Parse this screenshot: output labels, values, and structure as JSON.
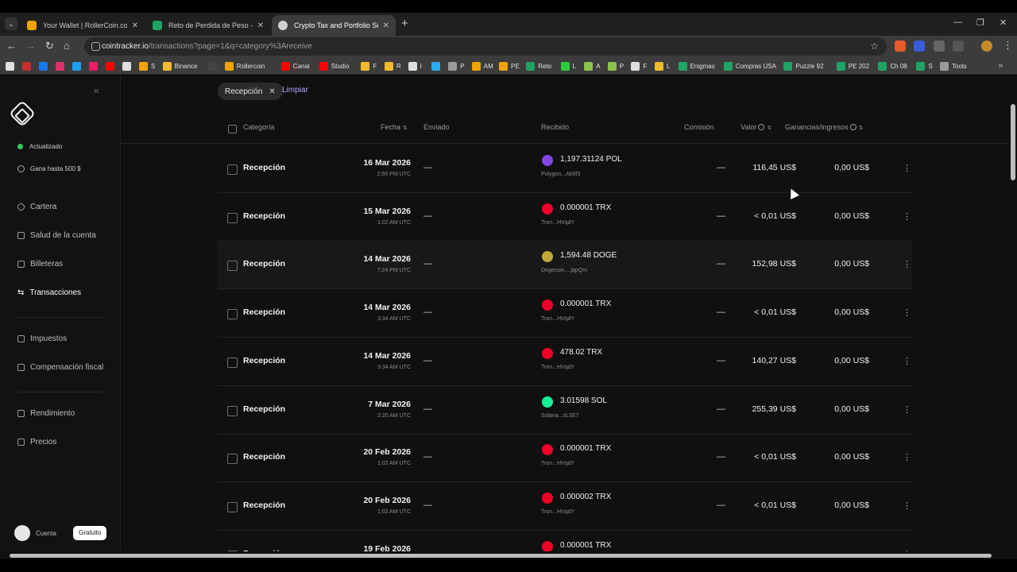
{
  "browser": {
    "tabs": [
      {
        "title": "Your Wallet | RollerCoin.com | W",
        "favicon": "rollercoin-icon",
        "color": "#f0a400",
        "active": false
      },
      {
        "title": "Reto de Perdida de Peso - El M",
        "favicon": "sheets-icon",
        "color": "#1fa463",
        "active": false
      },
      {
        "title": "Crypto Tax and Portfolio Softw",
        "favicon": "cointracker-icon",
        "color": "#d0d0d0",
        "active": true
      }
    ],
    "url_host": "cointracker.io",
    "url_path": "/transactions?page=1&q=category%3Areceive",
    "bookmarks": [
      {
        "label": "",
        "color": "#e0e0e0"
      },
      {
        "label": "",
        "color": "#c4302b"
      },
      {
        "label": "",
        "color": "#1877f2"
      },
      {
        "label": "",
        "color": "#e1306c"
      },
      {
        "label": "",
        "color": "#1da1f2"
      },
      {
        "label": "",
        "color": "#e91e63"
      },
      {
        "label": "",
        "color": "#ff0000"
      },
      {
        "label": "",
        "color": "#e0e0e0"
      },
      {
        "label": "S",
        "color": "#f0a400"
      },
      {
        "label": "Binance",
        "color": "#f3ba2f"
      },
      {
        "label": "",
        "color": "#444"
      },
      {
        "label": "Rollercoin",
        "color": "#f0a400"
      },
      {
        "label": "Canal",
        "color": "#ff0000"
      },
      {
        "label": "Studio",
        "color": "#ff0000"
      },
      {
        "label": "F",
        "color": "#f3ba2f"
      },
      {
        "label": "R",
        "color": "#f3ba2f"
      },
      {
        "label": "I",
        "color": "#e0e0e0"
      },
      {
        "label": "",
        "color": "#2aabee"
      },
      {
        "label": "P",
        "color": "#9a9a9a"
      },
      {
        "label": "AM",
        "color": "#f0a400"
      },
      {
        "label": "PE",
        "color": "#f0a400"
      },
      {
        "label": "Reto",
        "color": "#1fa463"
      },
      {
        "label": "L",
        "color": "#2ecc40"
      },
      {
        "label": "A",
        "color": "#8bc34a"
      },
      {
        "label": "P",
        "color": "#8bc34a"
      },
      {
        "label": "F",
        "color": "#e0e0e0"
      },
      {
        "label": "L",
        "color": "#f3ba2f"
      },
      {
        "label": "Enigmas",
        "color": "#1fa463"
      },
      {
        "label": "Compras USA",
        "color": "#1fa463"
      },
      {
        "label": "Puzzle 92",
        "color": "#1fa463"
      },
      {
        "label": "PE 202",
        "color": "#1fa463"
      },
      {
        "label": "Ch 08",
        "color": "#1fa463"
      },
      {
        "label": "S",
        "color": "#1fa463"
      },
      {
        "label": "Tools",
        "color": "#9a9a9a"
      }
    ]
  },
  "sidebar": {
    "status": "Actualizado",
    "promo": "Gana hasta 500 $",
    "items_top": [
      {
        "label": "Cartera",
        "icon": "pie-chart-icon"
      },
      {
        "label": "Salud de la cuenta",
        "icon": "heart-icon"
      },
      {
        "label": "Billeteras",
        "icon": "wallet-icon"
      },
      {
        "label": "Transacciones",
        "icon": "transfer-icon",
        "active": true
      }
    ],
    "items_mid": [
      {
        "label": "Impuestos",
        "icon": "document-icon"
      },
      {
        "label": "Compensación fiscal",
        "icon": "tax-loss-icon"
      }
    ],
    "items_bottom": [
      {
        "label": "Rendimiento",
        "icon": "bar-chart-icon"
      },
      {
        "label": "Precios",
        "icon": "trend-icon"
      }
    ],
    "account_label": "Cuenta",
    "plan": "Gratuito"
  },
  "filters": {
    "chip_label": "Recepción",
    "clear_label": "Limpiar"
  },
  "table": {
    "columns": {
      "category": "Categoría",
      "date": "Fecha",
      "sent": "Enviado",
      "received": "Recibido",
      "fee": "Comisión",
      "value": "Valor",
      "gains": "Ganancias/ingresos"
    },
    "rows": [
      {
        "category": "Recepción",
        "date": "16 Mar 2026",
        "time": "2:50 PM UTC",
        "sent": "—",
        "amount": "1,197.31124 POL",
        "wallet": "Polygon...Ab9f3",
        "coin_color": "#8247e5",
        "fee": "—",
        "value": "116,45 US$",
        "gain": "0,00 US$"
      },
      {
        "category": "Recepción",
        "date": "15 Mar 2026",
        "time": "1:02 AM UTC",
        "sent": "—",
        "amount": "0.000001 TRX",
        "wallet": "Tron...HVqdY",
        "coin_color": "#ef0027",
        "fee": "—",
        "value": "< 0,01 US$",
        "gain": "0,00 US$"
      },
      {
        "category": "Recepción",
        "date": "14 Mar 2026",
        "time": "7:24 PM UTC",
        "sent": "—",
        "amount": "1,594.48 DOGE",
        "wallet": "Dogecoin....jqpQm",
        "coin_color": "#c2a633",
        "fee": "—",
        "value": "152,98 US$",
        "gain": "0,00 US$",
        "hover": true
      },
      {
        "category": "Recepción",
        "date": "14 Mar 2026",
        "time": "3:34 AM UTC",
        "sent": "—",
        "amount": "0.000001 TRX",
        "wallet": "Tron...HVqdY",
        "coin_color": "#ef0027",
        "fee": "—",
        "value": "< 0,01 US$",
        "gain": "0,00 US$"
      },
      {
        "category": "Recepción",
        "date": "14 Mar 2026",
        "time": "3:34 AM UTC",
        "sent": "—",
        "amount": "478.02 TRX",
        "wallet": "Tron...HVqdY",
        "coin_color": "#ef0027",
        "fee": "—",
        "value": "140,27 US$",
        "gain": "0,00 US$"
      },
      {
        "category": "Recepción",
        "date": "7 Mar 2026",
        "time": "2:20 AM UTC",
        "sent": "—",
        "amount": "3.01598 SOL",
        "wallet": "Solana...sL5E7",
        "coin_color": "#14f195",
        "fee": "—",
        "value": "255,39 US$",
        "gain": "0,00 US$"
      },
      {
        "category": "Recepción",
        "date": "20 Feb 2026",
        "time": "1:02 AM UTC",
        "sent": "—",
        "amount": "0.000001 TRX",
        "wallet": "Tron...HVqdY",
        "coin_color": "#ef0027",
        "fee": "—",
        "value": "< 0,01 US$",
        "gain": "0,00 US$"
      },
      {
        "category": "Recepción",
        "date": "20 Feb 2026",
        "time": "1:02 AM UTC",
        "sent": "—",
        "amount": "0.000002 TRX",
        "wallet": "Tron...HVqdY",
        "coin_color": "#ef0027",
        "fee": "—",
        "value": "< 0,01 US$",
        "gain": "0,00 US$"
      },
      {
        "category": "Recepción",
        "date": "19 Feb 2026",
        "time": "",
        "sent": "—",
        "amount": "0.000001 TRX",
        "wallet": "",
        "coin_color": "#ef0027",
        "fee": "—",
        "value": "",
        "gain": ""
      }
    ]
  }
}
